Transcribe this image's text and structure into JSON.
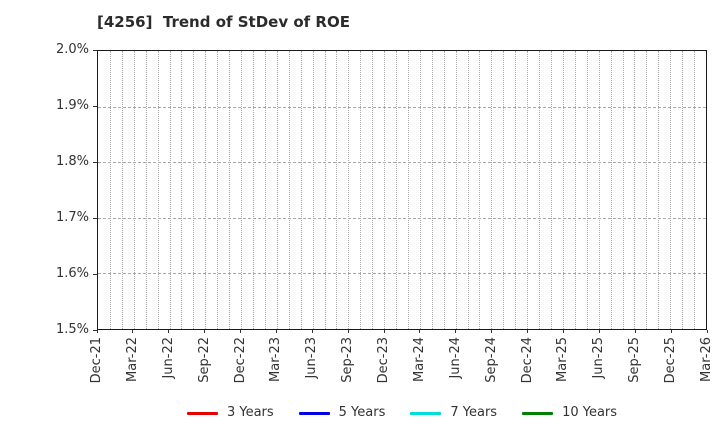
{
  "window": {
    "background": "#ffffff"
  },
  "chart_data": {
    "type": "line",
    "title": "[4256]  Trend of StDev of ROE",
    "xlabel": "",
    "ylabel": "",
    "x_labels": [
      "Dec-21",
      "Mar-22",
      "Jun-22",
      "Sep-22",
      "Dec-22",
      "Mar-23",
      "Jun-23",
      "Sep-23",
      "Dec-23",
      "Mar-24",
      "Jun-24",
      "Sep-24",
      "Dec-24",
      "Mar-25",
      "Jun-25",
      "Sep-25",
      "Dec-25",
      "Mar-26"
    ],
    "months_per_label": 3,
    "ylim_percent": [
      1.5,
      2.0
    ],
    "ytick_labels": [
      "2.0%",
      "1.9%",
      "1.8%",
      "1.7%",
      "1.6%",
      "1.5%"
    ],
    "grid": {
      "vertical_style": "dotted",
      "vertical_interval": "monthly",
      "horizontal_style": "dashed",
      "color": "#a9a9a9",
      "frame_color": "#1a1a1a"
    },
    "legend": {
      "position": "bottom-center"
    },
    "series": [
      {
        "name": "3 Years",
        "color": "#e60000",
        "values": []
      },
      {
        "name": "5 Years",
        "color": "#0000e6",
        "values": []
      },
      {
        "name": "7 Years",
        "color": "#00dcdc",
        "values": []
      },
      {
        "name": "10 Years",
        "color": "#008000",
        "values": []
      }
    ],
    "plot_area_empty": true
  }
}
